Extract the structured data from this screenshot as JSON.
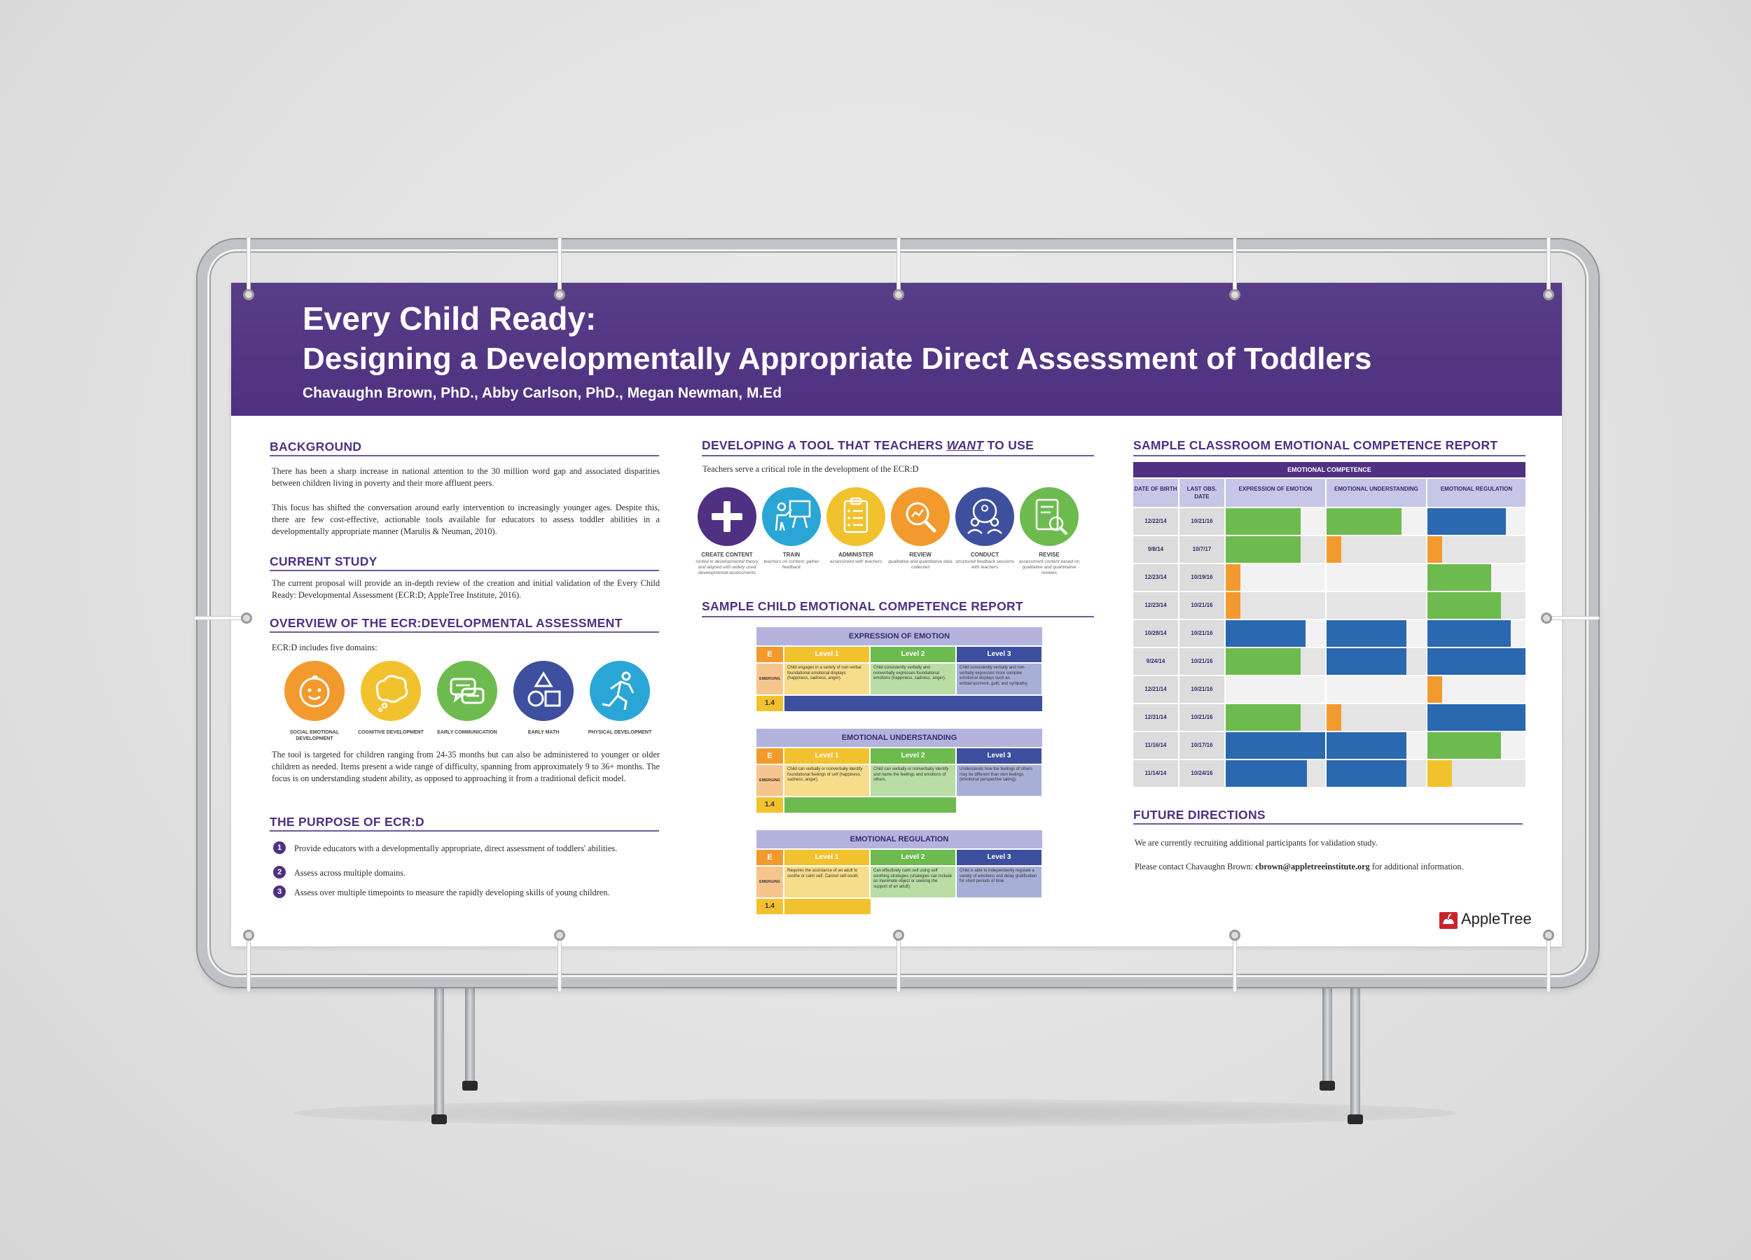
{
  "header": {
    "title_line1": "Every Child Ready:",
    "title_line2": "Designing a Developmentally Appropriate Direct Assessment of Toddlers",
    "authors": "Chavaughn Brown, PhD., Abby Carlson, PhD., Megan Newman, M.Ed"
  },
  "background": {
    "heading": "BACKGROUND",
    "p1": "There has been a sharp increase in national attention to the 30 million word gap and associated disparities between children living in poverty and their more affluent peers.",
    "p2": "This focus has shifted the conversation around early intervention to increasingly younger ages. Despite this, there are few cost-effective, actionable tools available for educators to assess toddler abilities in a developmentally appropriate manner (Marulis & Neuman, 2010)."
  },
  "current_study": {
    "heading": "CURRENT STUDY",
    "p1": "The current proposal will provide an in-depth review of the creation and initial validation of the Every Child Ready: Developmental Assessment (ECR:D; AppleTree Institute, 2016)."
  },
  "overview": {
    "heading": "OVERVIEW OF THE ECR:DEVELOPMENTAL ASSESSMENT",
    "intro": "ECR:D includes five domains:",
    "domains": [
      {
        "label": "SOCIAL EMOTIONAL DEVELOPMENT",
        "icon": "baby-face-icon",
        "color": "#f29a2e"
      },
      {
        "label": "COGNITIVE DEVELOPMENT",
        "icon": "thought-bubble-icon",
        "color": "#f2c12e"
      },
      {
        "label": "EARLY COMMUNICATION",
        "icon": "speech-bubbles-icon",
        "color": "#6dbb4f"
      },
      {
        "label": "EARLY MATH",
        "icon": "shapes-icon",
        "color": "#3d4f9e"
      },
      {
        "label": "PHYSICAL DEVELOPMENT",
        "icon": "running-person-icon",
        "color": "#2aa6d6"
      }
    ],
    "p2": "The tool is targeted for children ranging from 24-35 months but can also be administered to younger or older children as needed. Items present a wide range of difficulty, spanning from approximately 9 to 36+ months. The focus is on understanding student ability, as opposed to approaching it from a traditional deficit model."
  },
  "purpose": {
    "heading": "THE PURPOSE OF ECR:D",
    "items": [
      {
        "n": "1",
        "text": "Provide educators with a developmentally appropriate, direct assessment of toddlers' abilities."
      },
      {
        "n": "2",
        "text": "Assess across multiple domains."
      },
      {
        "n": "3",
        "text": "Assess over multiple timepoints to measure the rapidly developing skills of young children."
      }
    ]
  },
  "tool": {
    "heading_pre": "DEVELOPING A TOOL THAT TEACHERS",
    "heading_em": "WANT",
    "heading_post": "TO USE",
    "intro": "Teachers serve a critical role in the development of the ECR:D",
    "steps": [
      {
        "title": "CREATE CONTENT",
        "desc": "rooted in developmental theory and aligned with widely used developmental assessments",
        "icon": "plus-icon",
        "color": "#4f3082"
      },
      {
        "title": "TRAIN",
        "desc": "teachers on content; gather feedback",
        "icon": "teacher-board-icon",
        "color": "#2aa6d6"
      },
      {
        "title": "ADMINISTER",
        "desc": "assessment with teachers",
        "icon": "clipboard-icon",
        "color": "#f2c12e"
      },
      {
        "title": "REVIEW",
        "desc": "qualitative and quantitative data collected",
        "icon": "magnifier-chart-icon",
        "color": "#f29a2e"
      },
      {
        "title": "CONDUCT",
        "desc": "structured feedback sessions with teachers",
        "icon": "group-discussion-icon",
        "color": "#3d4f9e"
      },
      {
        "title": "REVISE",
        "desc": "assessment content based on qualitative and quantitative reviews",
        "icon": "document-search-icon",
        "color": "#6dbb4f"
      }
    ]
  },
  "child_report": {
    "heading": "SAMPLE CHILD EMOTIONAL COMPETENCE REPORT",
    "tables": [
      {
        "title": "EXPRESSION OF EMOTION",
        "letter": "E",
        "levels": [
          "Level 1",
          "Level 2",
          "Level 3"
        ],
        "row_label": "EMERGING",
        "descs": [
          "Child engages in a variety of non-verbal foundational emotional displays (happiness, sadness, anger).",
          "Child consistently verbally and nonverbally expresses foundational emotions (happiness, sadness, anger).",
          "Child consistently verbally and non-verbally expresses more complex emotional displays such as embarrassment, guilt, and sympathy."
        ],
        "score": "1.4",
        "fill": 1.0,
        "fill_color": "#3d4f9e"
      },
      {
        "title": "EMOTIONAL UNDERSTANDING",
        "letter": "E",
        "levels": [
          "Level 1",
          "Level 2",
          "Level 3"
        ],
        "row_label": "EMERGING",
        "descs": [
          "Child can verbally or nonverbally identify foundational feelings of self (happiness, sadness, anger).",
          "Child can verbally or nonverbally identify and name the feelings and emotions of others.",
          "Understands how the feelings of others may be different than own feelings (emotional perspective taking)."
        ],
        "score": "1.4",
        "fill": 0.667,
        "fill_color": "#6dbb4f"
      },
      {
        "title": "EMOTIONAL REGULATION",
        "letter": "E",
        "levels": [
          "Level 1",
          "Level 2",
          "Level 3"
        ],
        "row_label": "EMERGING",
        "descs": [
          "Requires the assistance of an adult to soothe or calm self. Cannot self-sooth.",
          "Can effectively calm self using self soothing strategies (strategies can include an inanimate object or seeking the support of an adult).",
          "Child is able to independently regulate a variety of emotions and delay gratification for short periods of time."
        ],
        "score": "1.4",
        "fill": 0.333,
        "fill_color": "#f2c12e"
      }
    ]
  },
  "classroom_report": {
    "heading": "SAMPLE CLASSROOM EMOTIONAL COMPETENCE REPORT",
    "banner": "EMOTIONAL COMPETENCE",
    "columns": [
      "DATE OF BIRTH",
      "LAST OBS. DATE",
      "EXPRESSION OF EMOTION",
      "EMOTIONAL UNDERSTANDING",
      "EMOTIONAL REGULATION"
    ],
    "rows": [
      {
        "dob": "12/22/14",
        "obs": "10/21/16",
        "bars": [
          {
            "v": 0.75,
            "c": "#6dbb4f"
          },
          {
            "v": 0.75,
            "c": "#6dbb4f"
          },
          {
            "v": 0.8,
            "c": "#2a68b0"
          }
        ]
      },
      {
        "dob": "9/8/14",
        "obs": "10/7/17",
        "bars": [
          {
            "v": 0.75,
            "c": "#6dbb4f"
          },
          {
            "v": 0.15,
            "c": "#f29a2e"
          },
          {
            "v": 0.15,
            "c": "#f29a2e"
          }
        ]
      },
      {
        "dob": "12/23/14",
        "obs": "10/19/16",
        "bars": [
          {
            "v": 0.15,
            "c": "#f29a2e"
          },
          {
            "v": 0.0,
            "c": "#ffffff"
          },
          {
            "v": 0.65,
            "c": "#6dbb4f"
          }
        ]
      },
      {
        "dob": "12/23/14",
        "obs": "10/21/16",
        "bars": [
          {
            "v": 0.15,
            "c": "#f29a2e"
          },
          {
            "v": 0.0,
            "c": "#ffffff"
          },
          {
            "v": 0.75,
            "c": "#6dbb4f"
          }
        ]
      },
      {
        "dob": "10/28/14",
        "obs": "10/21/16",
        "bars": [
          {
            "v": 0.8,
            "c": "#2a68b0"
          },
          {
            "v": 0.8,
            "c": "#2a68b0"
          },
          {
            "v": 0.85,
            "c": "#2a68b0"
          }
        ]
      },
      {
        "dob": "9/24/14",
        "obs": "10/21/16",
        "bars": [
          {
            "v": 0.75,
            "c": "#6dbb4f"
          },
          {
            "v": 0.8,
            "c": "#2a68b0"
          },
          {
            "v": 1.0,
            "c": "#2a68b0"
          }
        ]
      },
      {
        "dob": "12/21/14",
        "obs": "10/21/16",
        "bars": [
          {
            "v": 0.0,
            "c": "#ffffff"
          },
          {
            "v": 0.0,
            "c": "#ffffff"
          },
          {
            "v": 0.15,
            "c": "#f29a2e"
          }
        ]
      },
      {
        "dob": "12/31/14",
        "obs": "10/21/16",
        "bars": [
          {
            "v": 0.75,
            "c": "#6dbb4f"
          },
          {
            "v": 0.15,
            "c": "#f29a2e"
          },
          {
            "v": 1.0,
            "c": "#2a68b0"
          }
        ]
      },
      {
        "dob": "11/16/14",
        "obs": "10/17/16",
        "bars": [
          {
            "v": 1.0,
            "c": "#2a68b0"
          },
          {
            "v": 0.8,
            "c": "#2a68b0"
          },
          {
            "v": 0.75,
            "c": "#6dbb4f"
          }
        ]
      },
      {
        "dob": "11/14/14",
        "obs": "10/24/16",
        "bars": [
          {
            "v": 0.82,
            "c": "#2a68b0"
          },
          {
            "v": 0.8,
            "c": "#2a68b0"
          },
          {
            "v": 0.25,
            "c": "#f2c12e"
          }
        ]
      }
    ]
  },
  "future": {
    "heading": "FUTURE DIRECTIONS",
    "p1": "We are currently recruiting additional participants for validation study.",
    "p2_pre": "Please contact Chavaughn Brown:",
    "email": "cbrown@appletreeinstitute.org",
    "p2_post": "for additional information."
  },
  "logo": {
    "text": "AppleTree",
    "color": "#c8242b"
  }
}
